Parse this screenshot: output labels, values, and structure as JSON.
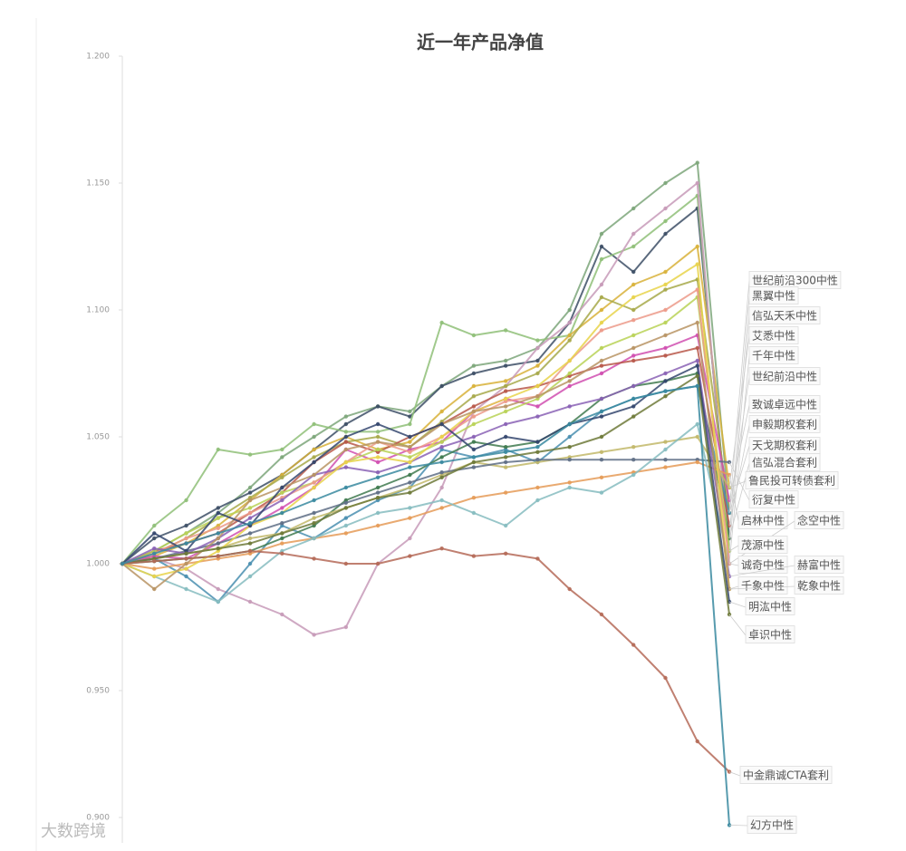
{
  "chart_data": {
    "type": "line",
    "title": "近一年产品净值",
    "watermark": "大数跨境",
    "categories": [
      null,
      null,
      null,
      null,
      null,
      null,
      null,
      null,
      null,
      null,
      null,
      null,
      null,
      null,
      null,
      null,
      null,
      null,
      null,
      null
    ],
    "ylim": [
      0.89,
      1.2
    ],
    "yticks": [
      {
        "value": 0.9,
        "label": "0.900"
      },
      {
        "value": 0.95,
        "label": "0.950"
      },
      {
        "value": 1.0,
        "label": "1.000"
      },
      {
        "value": 1.05,
        "label": "1.050"
      },
      {
        "value": 1.1,
        "label": "1.100"
      },
      {
        "value": 1.15,
        "label": "1.150"
      },
      {
        "value": 1.2,
        "label": "1.200"
      }
    ],
    "grid": false,
    "series": [
      {
        "name": "世纪前沿300中性",
        "color": "#7da67a",
        "values": [
          1.0,
          1.005,
          1.012,
          1.02,
          1.03,
          1.042,
          1.05,
          1.058,
          1.062,
          1.06,
          1.07,
          1.078,
          1.08,
          1.085,
          1.1,
          1.13,
          1.14,
          1.15,
          1.158,
          1.02
        ]
      },
      {
        "name": "黑翼中性",
        "color": "#3d4f66",
        "values": [
          1.0,
          1.01,
          1.015,
          1.022,
          1.028,
          1.035,
          1.045,
          1.055,
          1.062,
          1.058,
          1.07,
          1.075,
          1.078,
          1.08,
          1.095,
          1.125,
          1.115,
          1.13,
          1.14,
          1.01
        ]
      },
      {
        "name": "信弘天禾中性",
        "color": "#8fbf78",
        "values": [
          1.0,
          1.015,
          1.025,
          1.045,
          1.043,
          1.045,
          1.055,
          1.052,
          1.052,
          1.055,
          1.095,
          1.09,
          1.092,
          1.088,
          1.09,
          1.12,
          1.125,
          1.135,
          1.145,
          1.005
        ]
      },
      {
        "name": "艾悉中性",
        "color": "#d8b13a",
        "values": [
          1.0,
          1.003,
          1.008,
          1.015,
          1.025,
          1.035,
          1.045,
          1.05,
          1.045,
          1.048,
          1.06,
          1.07,
          1.072,
          1.078,
          1.09,
          1.1,
          1.11,
          1.115,
          1.125,
          1.03
        ]
      },
      {
        "name": "千年中性",
        "color": "#c79ab8",
        "values": [
          1.0,
          1.002,
          0.998,
          0.99,
          0.985,
          0.98,
          0.972,
          0.975,
          1.0,
          1.01,
          1.03,
          1.06,
          1.07,
          1.085,
          1.095,
          1.11,
          1.13,
          1.14,
          1.15,
          1.0
        ]
      },
      {
        "name": "世纪前沿中性",
        "color": "#a7a94a",
        "values": [
          1.0,
          1.004,
          1.01,
          1.018,
          1.026,
          1.034,
          1.042,
          1.048,
          1.05,
          1.046,
          1.056,
          1.066,
          1.07,
          1.075,
          1.088,
          1.105,
          1.1,
          1.108,
          1.112,
          1.02
        ]
      },
      {
        "name": "致诚卓远中性",
        "color": "#d04fb0",
        "values": [
          1.0,
          1.003,
          1.002,
          1.008,
          1.015,
          1.022,
          1.03,
          1.045,
          1.04,
          1.045,
          1.048,
          1.06,
          1.065,
          1.062,
          1.07,
          1.075,
          1.082,
          1.085,
          1.09,
          1.025
        ]
      },
      {
        "name": "申毅期权套利",
        "color": "#b8584a",
        "values": [
          1.0,
          1.005,
          1.008,
          1.012,
          1.02,
          1.028,
          1.04,
          1.048,
          1.044,
          1.05,
          1.055,
          1.062,
          1.068,
          1.07,
          1.074,
          1.078,
          1.08,
          1.082,
          1.085,
          1.015
        ]
      },
      {
        "name": "天戈期权套利",
        "color": "#4a8fb0",
        "values": [
          1.0,
          1.002,
          0.995,
          0.985,
          1.0,
          1.015,
          1.01,
          1.018,
          1.025,
          1.03,
          1.045,
          1.042,
          1.045,
          1.04,
          1.05,
          1.06,
          1.065,
          1.068,
          1.07,
          1.02
        ]
      },
      {
        "name": "信弘混合套利",
        "color": "#3f7a4f",
        "values": [
          1.0,
          1.001,
          1.002,
          1.003,
          1.005,
          1.01,
          1.015,
          1.025,
          1.03,
          1.035,
          1.042,
          1.048,
          1.046,
          1.048,
          1.055,
          1.065,
          1.07,
          1.072,
          1.075,
          1.01
        ]
      },
      {
        "name": "鲁民投可转债套利",
        "color": "#c2b86a",
        "values": [
          1.0,
          1.002,
          1.004,
          1.006,
          1.01,
          1.012,
          1.018,
          1.022,
          1.026,
          1.03,
          1.035,
          1.04,
          1.038,
          1.04,
          1.042,
          1.044,
          1.046,
          1.048,
          1.05,
          1.03
        ]
      },
      {
        "name": "衍复中性",
        "color": "#5f6f86",
        "values": [
          1.0,
          1.002,
          1.005,
          1.008,
          1.012,
          1.016,
          1.02,
          1.024,
          1.028,
          1.032,
          1.036,
          1.038,
          1.04,
          1.041,
          1.041,
          1.041,
          1.041,
          1.041,
          1.041,
          1.04
        ]
      },
      {
        "name": "启林中性",
        "color": "#e59b58",
        "values": [
          1.0,
          0.998,
          1.0,
          1.002,
          1.004,
          1.008,
          1.01,
          1.012,
          1.015,
          1.018,
          1.022,
          1.026,
          1.028,
          1.03,
          1.032,
          1.034,
          1.036,
          1.038,
          1.04,
          1.035
        ]
      },
      {
        "name": "念空中性",
        "color": "#86bcc0",
        "values": [
          1.0,
          0.995,
          0.99,
          0.985,
          0.995,
          1.005,
          1.01,
          1.015,
          1.02,
          1.022,
          1.025,
          1.02,
          1.015,
          1.025,
          1.03,
          1.028,
          1.035,
          1.045,
          1.055,
          1.0
        ]
      },
      {
        "name": "茂源中性",
        "color": "#b9d256",
        "values": [
          1.0,
          1.005,
          1.012,
          1.018,
          1.022,
          1.028,
          1.032,
          1.04,
          1.045,
          1.042,
          1.048,
          1.055,
          1.06,
          1.065,
          1.075,
          1.085,
          1.09,
          1.095,
          1.105,
          1.005
        ]
      },
      {
        "name": "诚奇中性",
        "color": "#ec9a8a",
        "values": [
          1.0,
          1.004,
          1.01,
          1.014,
          1.02,
          1.026,
          1.032,
          1.04,
          1.048,
          1.044,
          1.05,
          1.058,
          1.064,
          1.066,
          1.08,
          1.092,
          1.096,
          1.1,
          1.108,
          1.0
        ]
      },
      {
        "name": "赫富中性",
        "color": "#8a62b5",
        "values": [
          1.0,
          1.006,
          1.004,
          1.01,
          1.018,
          1.025,
          1.035,
          1.038,
          1.036,
          1.04,
          1.046,
          1.05,
          1.055,
          1.058,
          1.062,
          1.065,
          1.07,
          1.075,
          1.08,
          0.995
        ]
      },
      {
        "name": "千象中性",
        "color": "#e8d34a",
        "values": [
          1.0,
          0.995,
          0.998,
          1.005,
          1.015,
          1.02,
          1.03,
          1.04,
          1.042,
          1.04,
          1.05,
          1.06,
          1.065,
          1.07,
          1.08,
          1.095,
          1.105,
          1.11,
          1.118,
          0.99
        ]
      },
      {
        "name": "乾象中性",
        "color": "#b89464",
        "values": [
          1.0,
          0.99,
          1.0,
          1.01,
          1.025,
          1.03,
          1.035,
          1.045,
          1.048,
          1.046,
          1.055,
          1.06,
          1.062,
          1.066,
          1.072,
          1.08,
          1.085,
          1.09,
          1.095,
          0.99
        ]
      },
      {
        "name": "明汯中性",
        "color": "#34476e",
        "values": [
          1.0,
          1.012,
          1.005,
          1.02,
          1.015,
          1.03,
          1.04,
          1.05,
          1.055,
          1.05,
          1.055,
          1.045,
          1.05,
          1.048,
          1.055,
          1.058,
          1.062,
          1.072,
          1.078,
          0.985
        ]
      },
      {
        "name": "卓识中性",
        "color": "#6e7a3a",
        "values": [
          1.0,
          1.002,
          1.004,
          1.006,
          1.008,
          1.012,
          1.016,
          1.022,
          1.026,
          1.028,
          1.034,
          1.04,
          1.042,
          1.044,
          1.046,
          1.05,
          1.058,
          1.066,
          1.074,
          0.98
        ]
      },
      {
        "name": "中金鼎诚CTA套利",
        "color": "#b56a58",
        "values": [
          1.0,
          1.001,
          1.002,
          1.003,
          1.005,
          1.004,
          1.002,
          1.0,
          1.0,
          1.003,
          1.006,
          1.003,
          1.004,
          1.002,
          0.99,
          0.98,
          0.968,
          0.955,
          0.93,
          0.918
        ]
      },
      {
        "name": "幻方中性",
        "color": "#3a8aa0",
        "values": [
          1.0,
          1.004,
          1.008,
          1.012,
          1.016,
          1.02,
          1.025,
          1.03,
          1.034,
          1.038,
          1.04,
          1.042,
          1.044,
          1.046,
          1.055,
          1.06,
          1.065,
          1.068,
          1.07,
          0.897
        ]
      }
    ]
  }
}
